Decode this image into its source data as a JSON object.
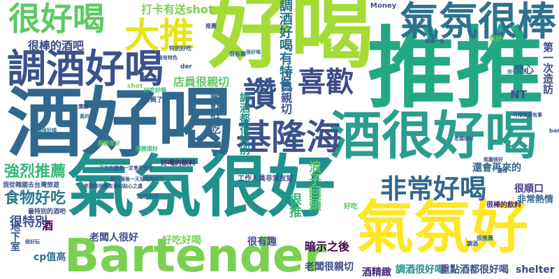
{
  "words": [
    {
      "text": "好喝",
      "color": "#a5db36"
    },
    {
      "text": "推推",
      "color": "#22a884"
    },
    {
      "text": "酒好喝",
      "color": "#31688e"
    },
    {
      "text": "氣氛很好",
      "color": "#21918c"
    },
    {
      "text": "Bartender",
      "color": "#7ad151"
    },
    {
      "text": "氣氛好",
      "color": "#fde725"
    },
    {
      "text": "酒很好喝",
      "color": "#2a9d8f"
    },
    {
      "text": "氣氛很棒",
      "color": "#2c728e"
    },
    {
      "text": "調酒好喝",
      "color": "#3b528b"
    },
    {
      "text": "很好喝",
      "color": "#5ec962"
    },
    {
      "text": "大推",
      "color": "#e5e419"
    },
    {
      "text": "讚",
      "color": "#3b528b"
    },
    {
      "text": "喜歡",
      "color": "#3e4a89"
    },
    {
      "text": "基隆海",
      "color": "#3b528b"
    },
    {
      "text": "非常好喝",
      "color": "#31688e"
    },
    {
      "text": "強烈推薦",
      "color": "#35b779"
    },
    {
      "text": "食物好吃",
      "color": "#2a788e"
    },
    {
      "text": "很棒的酒吧",
      "color": "#3e4a89"
    },
    {
      "text": "打卡有送shot",
      "color": "#7ad151"
    },
    {
      "text": "店員很親切",
      "color": "#5ec962"
    },
    {
      "text": "店員親切",
      "color": "#3b528b"
    },
    {
      "text": "調酒好喝有特色",
      "color": "#2c728e"
    },
    {
      "text": "餐點好吃",
      "color": "#31688e"
    },
    {
      "text": "調酒都很特別",
      "color": "#21918c"
    },
    {
      "text": "浪子回頭",
      "color": "#5ec962"
    },
    {
      "text": "很特別",
      "color": "#3b528b"
    },
    {
      "text": "很推",
      "color": "#35b779"
    },
    {
      "text": "還會再來的",
      "color": "#31688e"
    },
    {
      "text": "很順口",
      "color": "#443983"
    },
    {
      "text": "非常熱情",
      "color": "#31688e"
    },
    {
      "text": "老闆人很好",
      "color": "#3e4a89"
    },
    {
      "text": "好吃好喝",
      "color": "#7ad151"
    },
    {
      "text": "很有趣",
      "color": "#3b528b"
    },
    {
      "text": "暗示之後",
      "color": "#440154"
    },
    {
      "text": "cp值高",
      "color": "#2c728e"
    },
    {
      "text": "地下室",
      "color": "#3b528b"
    },
    {
      "text": "酒精緻",
      "color": "#482878"
    },
    {
      "text": "老闆很親切",
      "color": "#3e4a89"
    },
    {
      "text": "調酒很好喝",
      "color": "#21918c"
    },
    {
      "text": "重點酒都很好喝",
      "color": "#3b528b"
    },
    {
      "text": "shelter",
      "color": "#3e4a89"
    },
    {
      "text": "NT",
      "color": "#3e4a89"
    },
    {
      "text": "開心",
      "color": "#3b528b"
    },
    {
      "text": "第一次造訪",
      "color": "#3e4a89"
    },
    {
      "text": "Money",
      "color": "#3b528b"
    },
    {
      "text": "好喝的飲料",
      "color": "#482878"
    },
    {
      "text": "我從韓國去台灣旅遊",
      "color": "#3b528b"
    },
    {
      "text": "最特別的酒吧",
      "color": "#3e4a89"
    },
    {
      "text": "酒",
      "color": "#440154"
    },
    {
      "text": "好吃",
      "color": "#5ec962"
    },
    {
      "text": "很棒的飲料",
      "color": "#482878"
    },
    {
      "text": "工作人員非常友好",
      "color": "#3e4a89"
    },
    {
      "text": "下次有機會一定會再造訪",
      "color": "#3b528b"
    },
    {
      "text": "旅行最後一天站吧的地方",
      "color": "#3b528b"
    },
    {
      "text": "老闆都很很友善的貼心之處",
      "color": "#3e4a89"
    },
    {
      "text": "shot",
      "color": "#7ad151"
    },
    {
      "text": "很有特色",
      "color": "#3b528b"
    },
    {
      "text": "值得一去",
      "color": "#3b528b"
    },
    {
      "text": "服務很好",
      "color": "#35b779"
    },
    {
      "text": "很好",
      "color": "#5ec962"
    },
    {
      "text": "bar",
      "color": "#3b528b"
    },
    {
      "text": "der",
      "color": "#3b528b"
    },
    {
      "text": "大概了",
      "color": "#3b528b"
    },
    {
      "text": "好吃好喝",
      "color": "#35b779"
    },
    {
      "text": "很有趣",
      "color": "#31688e"
    },
    {
      "text": "很有特色",
      "color": "#21918c"
    },
    {
      "text": "還想再來",
      "color": "#31688e"
    },
    {
      "text": "每一杯都很好喝",
      "color": "#31688e"
    },
    {
      "text": "服務很好",
      "color": "#5ec962"
    },
    {
      "text": "老闆很好",
      "color": "#3b528b"
    },
    {
      "text": "氛圍很好",
      "color": "#3e4a89"
    },
    {
      "text": "很好喝",
      "color": "#31688e"
    },
    {
      "text": "可惜後面有事",
      "color": "#3e4a89"
    },
    {
      "text": "推薦",
      "color": "#3b528b"
    },
    {
      "text": "讚讚",
      "color": "#3b528b"
    },
    {
      "text": "很推薦",
      "color": "#31688e"
    },
    {
      "text": "很好玩",
      "color": "#3b528b"
    },
    {
      "text": "特別好吃",
      "color": "#3b528b"
    },
    {
      "text": "真的推",
      "color": "#31688e"
    },
    {
      "text": "還有",
      "color": "#3b528b"
    },
    {
      "text": "調酒",
      "color": "#3b528b"
    }
  ]
}
